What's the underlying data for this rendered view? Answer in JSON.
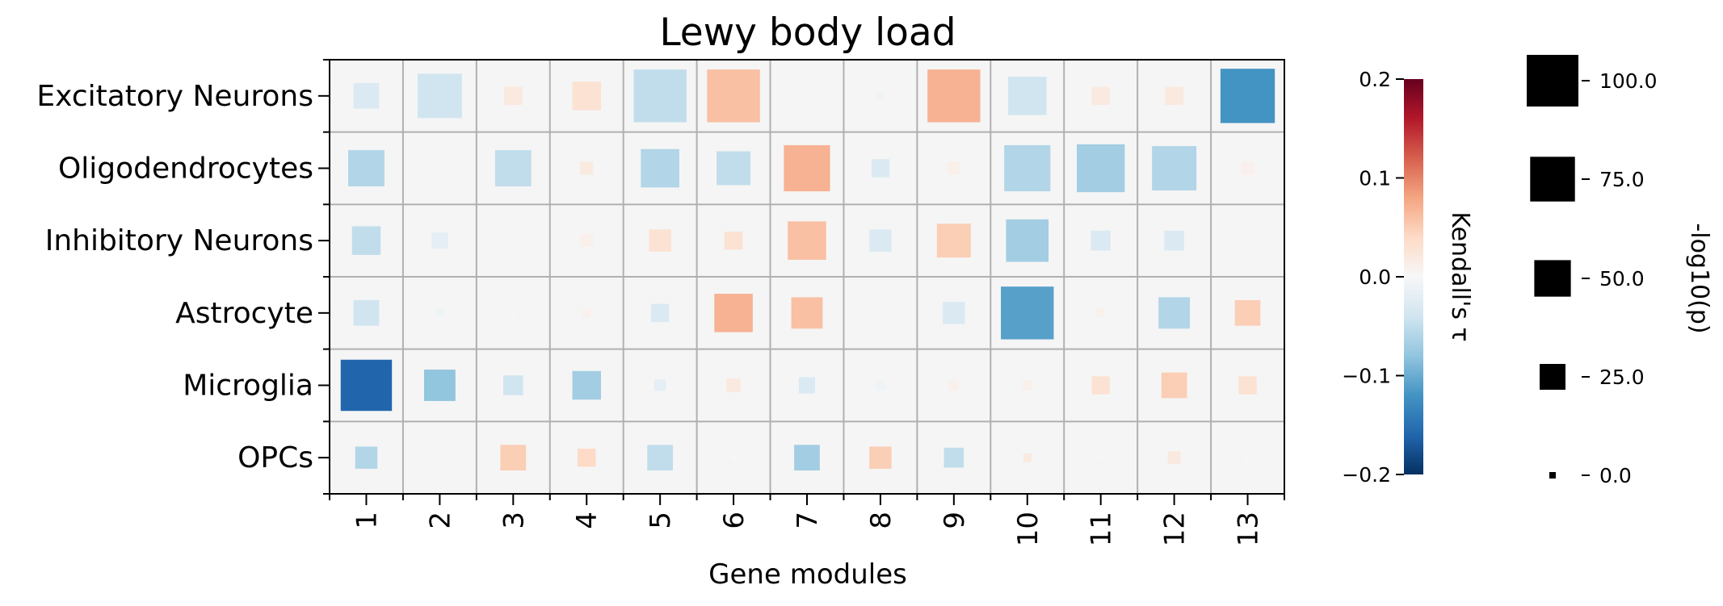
{
  "chart_data": {
    "type": "heatmap",
    "title": "Lewy body load",
    "xlabel": "Gene modules",
    "ylabel": "",
    "categories_x": [
      "1",
      "2",
      "3",
      "4",
      "5",
      "6",
      "7",
      "8",
      "9",
      "10",
      "11",
      "12",
      "13"
    ],
    "categories_y": [
      "Excitatory Neurons",
      "Oligodendrocytes",
      "Inhibitory Neurons",
      "Astrocyte",
      "Microglia",
      "OPCs"
    ],
    "tau": [
      [
        -0.03,
        -0.04,
        0.02,
        0.03,
        -0.05,
        0.06,
        0.0,
        -0.01,
        0.07,
        -0.04,
        0.02,
        0.02,
        -0.12
      ],
      [
        -0.06,
        0.0,
        -0.05,
        0.02,
        -0.06,
        -0.05,
        0.07,
        -0.03,
        0.01,
        -0.06,
        -0.07,
        -0.06,
        0.01
      ],
      [
        -0.05,
        -0.02,
        0.0,
        0.01,
        0.03,
        0.03,
        0.06,
        -0.03,
        0.05,
        -0.07,
        -0.03,
        -0.03,
        0.0
      ],
      [
        -0.04,
        -0.01,
        0.0,
        0.01,
        -0.03,
        0.07,
        0.06,
        0.0,
        -0.03,
        -0.11,
        0.01,
        -0.06,
        0.05
      ],
      [
        -0.16,
        -0.08,
        -0.04,
        -0.07,
        -0.02,
        0.02,
        -0.03,
        -0.01,
        0.01,
        0.01,
        0.03,
        0.05,
        0.03
      ],
      [
        -0.06,
        0.0,
        0.05,
        0.04,
        -0.05,
        0.0,
        -0.07,
        0.05,
        -0.05,
        0.02,
        0.0,
        0.02,
        0.0
      ]
    ],
    "neglog10p": [
      [
        20,
        60,
        10,
        25,
        85,
        85,
        0,
        2,
        85,
        45,
        10,
        10,
        90
      ],
      [
        40,
        0,
        40,
        5,
        45,
        35,
        65,
        10,
        5,
        65,
        70,
        60,
        5
      ],
      [
        25,
        8,
        0,
        5,
        15,
        10,
        45,
        15,
        35,
        55,
        12,
        12,
        0
      ],
      [
        20,
        2,
        0,
        2,
        10,
        45,
        30,
        0,
        15,
        85,
        2,
        30,
        20
      ],
      [
        80,
        30,
        12,
        25,
        4,
        6,
        8,
        3,
        3,
        3,
        10,
        20,
        10
      ],
      [
        15,
        0,
        20,
        10,
        20,
        0,
        20,
        15,
        12,
        2,
        0,
        5,
        0
      ]
    ],
    "colorbar": {
      "label": "Kendall's τ",
      "range": [
        -0.2,
        0.2
      ],
      "ticks": [
        "0.2",
        "0.1",
        "0.0",
        "−0.1",
        "−0.2"
      ],
      "tick_values": [
        0.2,
        0.1,
        0.0,
        -0.1,
        -0.2
      ]
    },
    "size_legend": {
      "label": "-log10(p)",
      "values": [
        100.0,
        75.0,
        50.0,
        25.0,
        0.0
      ],
      "ticks": [
        "100.0",
        "75.0",
        "50.0",
        "25.0",
        "0.0"
      ]
    },
    "grid": true
  }
}
